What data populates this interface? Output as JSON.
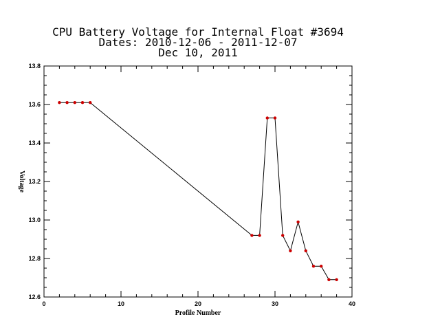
{
  "chart_data": {
    "type": "line",
    "title": [
      "CPU Battery Voltage for Internal Float #3694",
      "Dates:  2010-12-06 -  2011-12-07",
      "Dec 10, 2011"
    ],
    "xlabel": "Profile Number",
    "ylabel": "Voltage",
    "xlim": [
      0,
      40
    ],
    "ylim": [
      12.6,
      13.8
    ],
    "x_ticks": [
      "0",
      "10",
      "20",
      "30",
      "40"
    ],
    "y_ticks": [
      "12.6",
      "12.8",
      "13.0",
      "13.2",
      "13.4",
      "13.6",
      "13.8"
    ],
    "grid": false,
    "line_color": "#000000",
    "marker_color": "#cc0000",
    "x": [
      2,
      3,
      4,
      5,
      6,
      27,
      28,
      29,
      30,
      31,
      32,
      33,
      34,
      35,
      36,
      37,
      38
    ],
    "y": [
      13.61,
      13.61,
      13.61,
      13.61,
      13.61,
      12.92,
      12.92,
      13.53,
      13.53,
      12.92,
      12.84,
      12.99,
      12.84,
      12.76,
      12.76,
      12.69,
      12.69
    ]
  }
}
